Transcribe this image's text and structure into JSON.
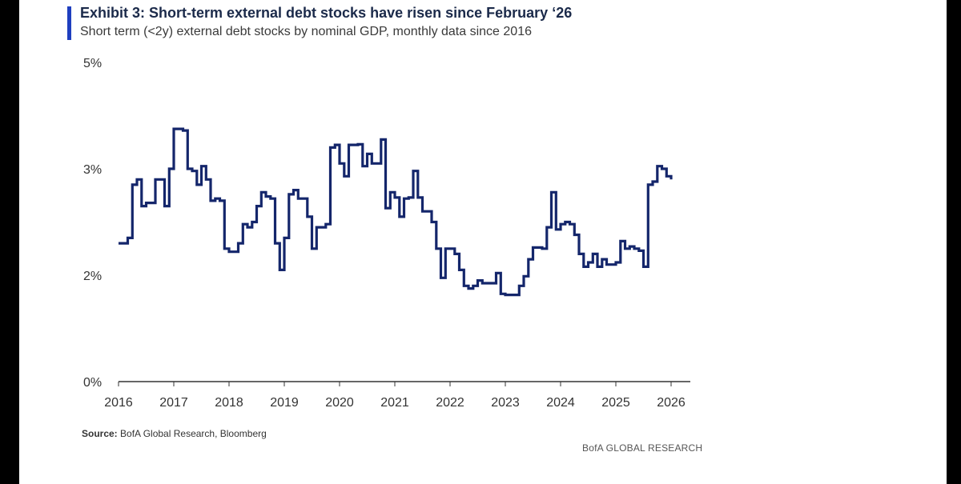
{
  "header": {
    "title": "Exhibit 3: Short-term external debt stocks have risen since February ‘26",
    "subtitle": "Short term (<2y) external debt stocks by nominal GDP, monthly data since 2016"
  },
  "footer": {
    "source_label": "Source:",
    "source_text": " BofA Global Research, Bloomberg",
    "brand": "BofA GLOBAL RESEARCH"
  },
  "colors": {
    "line": "#14266b",
    "accent": "#1f3fbf",
    "axis": "#333333"
  },
  "chart_data": {
    "type": "line",
    "title": "Exhibit 3: Short-term external debt stocks have risen since February ‘26",
    "subtitle": "Short term (<2y) external debt stocks by nominal GDP, monthly data since 2016",
    "xlabel": "",
    "ylabel": "",
    "x_ticks": [
      "2016",
      "2017",
      "2018",
      "2019",
      "2020",
      "2021",
      "2022",
      "2023",
      "2024",
      "2025",
      "2026"
    ],
    "y_ticks": [
      "0%",
      "2%",
      "3%",
      "5%"
    ],
    "grid": false,
    "series": [
      {
        "x": [
          "2016-01",
          "2016-02",
          "2016-03",
          "2016-04",
          "2016-05",
          "2016-06",
          "2016-07",
          "2016-08",
          "2016-09",
          "2016-10",
          "2016-11",
          "2016-12",
          "2017-01",
          "2017-02",
          "2017-03",
          "2017-04",
          "2017-05",
          "2017-06",
          "2017-07",
          "2017-08",
          "2017-09",
          "2017-10",
          "2017-11",
          "2017-12",
          "2018-01",
          "2018-02",
          "2018-03",
          "2018-04",
          "2018-05",
          "2018-06",
          "2018-07",
          "2018-08",
          "2018-09",
          "2018-10",
          "2018-11",
          "2018-12",
          "2019-01",
          "2019-02",
          "2019-03",
          "2019-04",
          "2019-05",
          "2019-06",
          "2019-07",
          "2019-08",
          "2019-09",
          "2019-10",
          "2019-11",
          "2019-12",
          "2020-01",
          "2020-02",
          "2020-03",
          "2020-04",
          "2020-05",
          "2020-06",
          "2020-07",
          "2020-08",
          "2020-09",
          "2020-10",
          "2020-11",
          "2020-12",
          "2021-01",
          "2021-02",
          "2021-03",
          "2021-04",
          "2021-05",
          "2021-06",
          "2021-07",
          "2021-08",
          "2021-09",
          "2021-10",
          "2021-11",
          "2021-12",
          "2022-01",
          "2022-02",
          "2022-03",
          "2022-04",
          "2022-05",
          "2022-06",
          "2022-07",
          "2022-08",
          "2022-09",
          "2022-10",
          "2022-11",
          "2022-12",
          "2023-01",
          "2023-02",
          "2023-03",
          "2023-04",
          "2023-05",
          "2023-06",
          "2023-07",
          "2023-08",
          "2023-09",
          "2023-10",
          "2023-11",
          "2023-12",
          "2024-01",
          "2024-02",
          "2024-03",
          "2024-04",
          "2024-05",
          "2024-06",
          "2024-07",
          "2024-08",
          "2024-09",
          "2024-10",
          "2024-11",
          "2024-12",
          "2025-01",
          "2025-02",
          "2025-03",
          "2025-04",
          "2025-05",
          "2025-06",
          "2025-07",
          "2025-08",
          "2025-09",
          "2025-10",
          "2025-11",
          "2025-12",
          "2026-01"
        ],
        "values": [
          2.3,
          2.3,
          2.35,
          2.85,
          2.9,
          2.65,
          2.68,
          2.68,
          2.9,
          2.9,
          2.65,
          3.0,
          3.75,
          3.75,
          3.72,
          3.0,
          2.98,
          2.85,
          3.05,
          2.9,
          2.7,
          2.72,
          2.7,
          2.25,
          2.22,
          2.22,
          2.3,
          2.48,
          2.45,
          2.5,
          2.65,
          2.78,
          2.74,
          2.72,
          2.3,
          2.05,
          2.35,
          2.76,
          2.8,
          2.72,
          2.72,
          2.55,
          2.25,
          2.45,
          2.45,
          2.48,
          3.4,
          3.45,
          3.1,
          2.93,
          3.45,
          3.45,
          3.46,
          3.05,
          3.28,
          3.1,
          3.1,
          3.55,
          2.63,
          2.78,
          2.73,
          2.55,
          2.72,
          2.73,
          2.98,
          2.73,
          2.6,
          2.6,
          2.5,
          2.25,
          1.95,
          2.25,
          2.25,
          2.2,
          2.05,
          1.8,
          1.75,
          1.8,
          1.9,
          1.85,
          1.85,
          1.85,
          2.02,
          1.65,
          1.63,
          1.63,
          1.63,
          1.8,
          1.98,
          2.15,
          2.26,
          2.26,
          2.25,
          2.45,
          2.78,
          2.43,
          2.48,
          2.5,
          2.48,
          2.38,
          2.2,
          2.08,
          2.12,
          2.2,
          2.08,
          2.15,
          2.1,
          2.1,
          2.12,
          2.32,
          2.25,
          2.27,
          2.25,
          2.23,
          2.08,
          2.85,
          2.88,
          3.05,
          3.0,
          2.93,
          2.9
        ]
      }
    ],
    "ylim": [
      0,
      5
    ],
    "xlim": [
      "2016-01",
      "2026-01"
    ]
  }
}
